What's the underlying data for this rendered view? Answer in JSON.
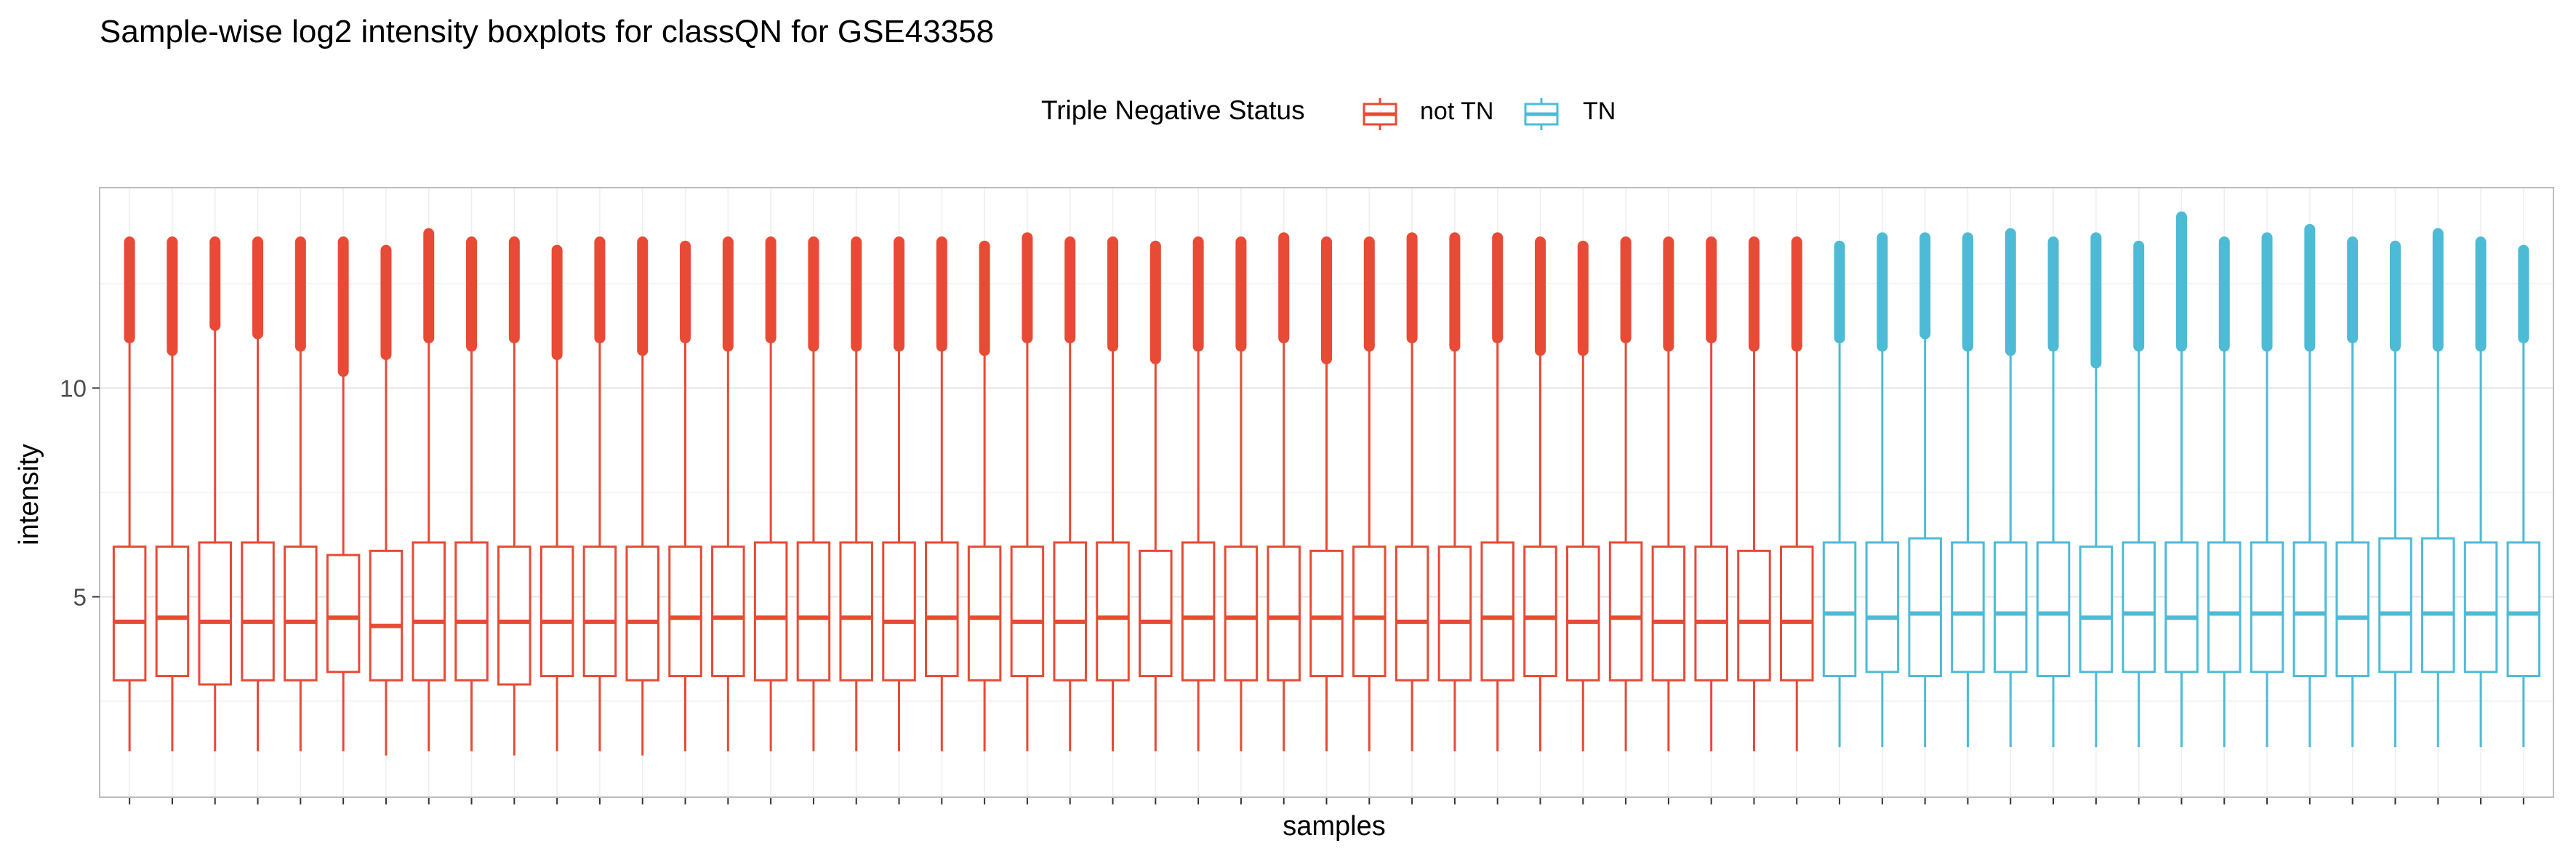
{
  "chart_data": {
    "type": "boxplot",
    "title": "Sample-wise log2 intensity boxplots for classQN for GSE43358",
    "xlabel": "samples",
    "ylabel": "intensity",
    "ylim": [
      0.2,
      14.8
    ],
    "yticks": [
      5,
      10
    ],
    "grid": true,
    "legend": {
      "title": "Triple Negative Status",
      "position": "top",
      "entries": [
        {
          "label": "not TN",
          "color": "#E84A35"
        },
        {
          "label": "TN",
          "color": "#4DBBD5"
        }
      ]
    },
    "series": [
      {
        "name": "not TN",
        "color": "#E84A35",
        "samples": [
          {
            "min": 1.3,
            "q1": 3.0,
            "median": 4.4,
            "q3": 6.2,
            "whisker_max": 11.2,
            "max": 13.5
          },
          {
            "min": 1.3,
            "q1": 3.1,
            "median": 4.5,
            "q3": 6.2,
            "whisker_max": 10.9,
            "max": 13.5
          },
          {
            "min": 1.3,
            "q1": 2.9,
            "median": 4.4,
            "q3": 6.3,
            "whisker_max": 11.5,
            "max": 13.5
          },
          {
            "min": 1.3,
            "q1": 3.0,
            "median": 4.4,
            "q3": 6.3,
            "whisker_max": 11.3,
            "max": 13.5
          },
          {
            "min": 1.3,
            "q1": 3.0,
            "median": 4.4,
            "q3": 6.2,
            "whisker_max": 11.0,
            "max": 13.5
          },
          {
            "min": 1.3,
            "q1": 3.2,
            "median": 4.5,
            "q3": 6.0,
            "whisker_max": 10.4,
            "max": 13.5
          },
          {
            "min": 1.2,
            "q1": 3.0,
            "median": 4.3,
            "q3": 6.1,
            "whisker_max": 10.8,
            "max": 13.3
          },
          {
            "min": 1.3,
            "q1": 3.0,
            "median": 4.4,
            "q3": 6.3,
            "whisker_max": 11.2,
            "max": 13.7
          },
          {
            "min": 1.3,
            "q1": 3.0,
            "median": 4.4,
            "q3": 6.3,
            "whisker_max": 11.0,
            "max": 13.5
          },
          {
            "min": 1.2,
            "q1": 2.9,
            "median": 4.4,
            "q3": 6.2,
            "whisker_max": 11.2,
            "max": 13.5
          },
          {
            "min": 1.3,
            "q1": 3.1,
            "median": 4.4,
            "q3": 6.2,
            "whisker_max": 10.8,
            "max": 13.3
          },
          {
            "min": 1.3,
            "q1": 3.1,
            "median": 4.4,
            "q3": 6.2,
            "whisker_max": 11.2,
            "max": 13.5
          },
          {
            "min": 1.2,
            "q1": 3.0,
            "median": 4.4,
            "q3": 6.2,
            "whisker_max": 10.9,
            "max": 13.5
          },
          {
            "min": 1.3,
            "q1": 3.1,
            "median": 4.5,
            "q3": 6.2,
            "whisker_max": 11.2,
            "max": 13.4
          },
          {
            "min": 1.3,
            "q1": 3.1,
            "median": 4.5,
            "q3": 6.2,
            "whisker_max": 11.0,
            "max": 13.5
          },
          {
            "min": 1.3,
            "q1": 3.0,
            "median": 4.5,
            "q3": 6.3,
            "whisker_max": 11.2,
            "max": 13.5
          },
          {
            "min": 1.3,
            "q1": 3.0,
            "median": 4.5,
            "q3": 6.3,
            "whisker_max": 11.0,
            "max": 13.5
          },
          {
            "min": 1.3,
            "q1": 3.0,
            "median": 4.5,
            "q3": 6.3,
            "whisker_max": 11.0,
            "max": 13.5
          },
          {
            "min": 1.3,
            "q1": 3.0,
            "median": 4.4,
            "q3": 6.3,
            "whisker_max": 11.0,
            "max": 13.5
          },
          {
            "min": 1.3,
            "q1": 3.1,
            "median": 4.5,
            "q3": 6.3,
            "whisker_max": 11.0,
            "max": 13.5
          },
          {
            "min": 1.3,
            "q1": 3.0,
            "median": 4.5,
            "q3": 6.2,
            "whisker_max": 10.9,
            "max": 13.4
          },
          {
            "min": 1.3,
            "q1": 3.1,
            "median": 4.4,
            "q3": 6.2,
            "whisker_max": 11.2,
            "max": 13.6
          },
          {
            "min": 1.3,
            "q1": 3.0,
            "median": 4.4,
            "q3": 6.3,
            "whisker_max": 11.2,
            "max": 13.5
          },
          {
            "min": 1.3,
            "q1": 3.0,
            "median": 4.5,
            "q3": 6.3,
            "whisker_max": 11.0,
            "max": 13.5
          },
          {
            "min": 1.3,
            "q1": 3.1,
            "median": 4.4,
            "q3": 6.1,
            "whisker_max": 10.7,
            "max": 13.4
          },
          {
            "min": 1.3,
            "q1": 3.0,
            "median": 4.5,
            "q3": 6.3,
            "whisker_max": 11.0,
            "max": 13.5
          },
          {
            "min": 1.3,
            "q1": 3.0,
            "median": 4.5,
            "q3": 6.2,
            "whisker_max": 11.0,
            "max": 13.5
          },
          {
            "min": 1.3,
            "q1": 3.0,
            "median": 4.5,
            "q3": 6.2,
            "whisker_max": 11.2,
            "max": 13.6
          },
          {
            "min": 1.3,
            "q1": 3.1,
            "median": 4.5,
            "q3": 6.1,
            "whisker_max": 10.7,
            "max": 13.5
          },
          {
            "min": 1.3,
            "q1": 3.1,
            "median": 4.5,
            "q3": 6.2,
            "whisker_max": 11.0,
            "max": 13.5
          },
          {
            "min": 1.3,
            "q1": 3.0,
            "median": 4.4,
            "q3": 6.2,
            "whisker_max": 11.2,
            "max": 13.6
          },
          {
            "min": 1.3,
            "q1": 3.0,
            "median": 4.4,
            "q3": 6.2,
            "whisker_max": 11.0,
            "max": 13.6
          },
          {
            "min": 1.3,
            "q1": 3.0,
            "median": 4.5,
            "q3": 6.3,
            "whisker_max": 11.2,
            "max": 13.6
          },
          {
            "min": 1.3,
            "q1": 3.1,
            "median": 4.5,
            "q3": 6.2,
            "whisker_max": 10.9,
            "max": 13.5
          },
          {
            "min": 1.3,
            "q1": 3.0,
            "median": 4.4,
            "q3": 6.2,
            "whisker_max": 10.9,
            "max": 13.4
          },
          {
            "min": 1.3,
            "q1": 3.0,
            "median": 4.5,
            "q3": 6.3,
            "whisker_max": 11.2,
            "max": 13.5
          },
          {
            "min": 1.3,
            "q1": 3.0,
            "median": 4.4,
            "q3": 6.2,
            "whisker_max": 11.0,
            "max": 13.5
          },
          {
            "min": 1.3,
            "q1": 3.0,
            "median": 4.4,
            "q3": 6.2,
            "whisker_max": 11.2,
            "max": 13.5
          },
          {
            "min": 1.3,
            "q1": 3.0,
            "median": 4.4,
            "q3": 6.1,
            "whisker_max": 11.0,
            "max": 13.5
          },
          {
            "min": 1.3,
            "q1": 3.0,
            "median": 4.4,
            "q3": 6.2,
            "whisker_max": 11.0,
            "max": 13.5
          }
        ]
      },
      {
        "name": "TN",
        "color": "#4DBBD5",
        "samples": [
          {
            "min": 1.4,
            "q1": 3.1,
            "median": 4.6,
            "q3": 6.3,
            "whisker_max": 11.2,
            "max": 13.4
          },
          {
            "min": 1.4,
            "q1": 3.2,
            "median": 4.5,
            "q3": 6.3,
            "whisker_max": 11.0,
            "max": 13.6
          },
          {
            "min": 1.4,
            "q1": 3.1,
            "median": 4.6,
            "q3": 6.4,
            "whisker_max": 11.3,
            "max": 13.6
          },
          {
            "min": 1.4,
            "q1": 3.2,
            "median": 4.6,
            "q3": 6.3,
            "whisker_max": 11.0,
            "max": 13.6
          },
          {
            "min": 1.4,
            "q1": 3.2,
            "median": 4.6,
            "q3": 6.3,
            "whisker_max": 10.9,
            "max": 13.7
          },
          {
            "min": 1.4,
            "q1": 3.1,
            "median": 4.6,
            "q3": 6.3,
            "whisker_max": 11.0,
            "max": 13.5
          },
          {
            "min": 1.4,
            "q1": 3.2,
            "median": 4.5,
            "q3": 6.2,
            "whisker_max": 10.6,
            "max": 13.6
          },
          {
            "min": 1.4,
            "q1": 3.2,
            "median": 4.6,
            "q3": 6.3,
            "whisker_max": 11.0,
            "max": 13.4
          },
          {
            "min": 1.4,
            "q1": 3.2,
            "median": 4.5,
            "q3": 6.3,
            "whisker_max": 11.0,
            "max": 14.1
          },
          {
            "min": 1.4,
            "q1": 3.2,
            "median": 4.6,
            "q3": 6.3,
            "whisker_max": 11.0,
            "max": 13.5
          },
          {
            "min": 1.4,
            "q1": 3.2,
            "median": 4.6,
            "q3": 6.3,
            "whisker_max": 11.0,
            "max": 13.6
          },
          {
            "min": 1.4,
            "q1": 3.1,
            "median": 4.6,
            "q3": 6.3,
            "whisker_max": 11.0,
            "max": 13.8
          },
          {
            "min": 1.4,
            "q1": 3.1,
            "median": 4.5,
            "q3": 6.3,
            "whisker_max": 11.2,
            "max": 13.5
          },
          {
            "min": 1.4,
            "q1": 3.2,
            "median": 4.6,
            "q3": 6.4,
            "whisker_max": 11.0,
            "max": 13.4
          },
          {
            "min": 1.4,
            "q1": 3.2,
            "median": 4.6,
            "q3": 6.4,
            "whisker_max": 11.0,
            "max": 13.7
          },
          {
            "min": 1.4,
            "q1": 3.2,
            "median": 4.6,
            "q3": 6.3,
            "whisker_max": 11.0,
            "max": 13.5
          },
          {
            "min": 1.4,
            "q1": 3.1,
            "median": 4.6,
            "q3": 6.3,
            "whisker_max": 11.2,
            "max": 13.3
          }
        ]
      }
    ]
  }
}
